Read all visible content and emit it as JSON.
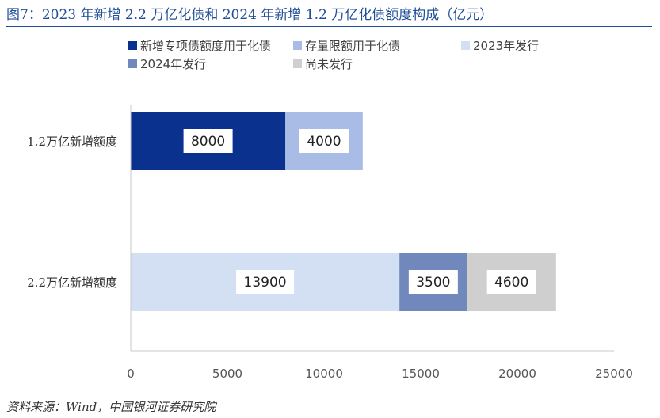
{
  "figure": {
    "title": "图7：2023 年新增 2.2 万亿化债和 2024 年新增 1.2 万亿化债额度构成（亿元）",
    "source": "资料来源：Wind，中国银河证券研究院"
  },
  "chart_data": {
    "type": "bar",
    "orientation": "horizontal",
    "stacked": true,
    "categories": [
      "1.2万亿新增额度",
      "2.2万亿新增额度"
    ],
    "series": [
      {
        "name": "新增专项债额度用于化债",
        "color": "#0b318f",
        "values": [
          8000,
          null
        ]
      },
      {
        "name": "存量限额用于化债",
        "color": "#a9bce6",
        "values": [
          4000,
          null
        ]
      },
      {
        "name": "2023年发行",
        "color": "#d3dff2",
        "values": [
          null,
          13900
        ]
      },
      {
        "name": "2024年发行",
        "color": "#7088bb",
        "values": [
          null,
          3500
        ]
      },
      {
        "name": "尚未发行",
        "color": "#d0cfcf",
        "values": [
          null,
          4600
        ]
      }
    ],
    "xlim": [
      0,
      25000
    ],
    "xticks": [
      0,
      5000,
      10000,
      15000,
      20000,
      25000
    ],
    "grid": false,
    "legend_position": "top"
  }
}
